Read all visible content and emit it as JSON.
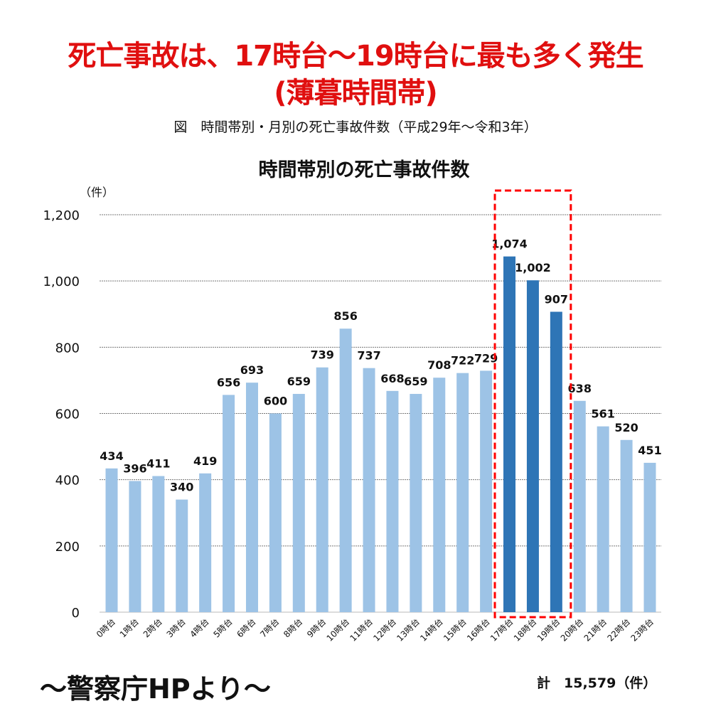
{
  "headline": {
    "line1": "死亡事故は、17時台〜19時台に最も多く発生",
    "line2": "(薄暮時間帯)",
    "color": "#e00f0f"
  },
  "figure_caption": "図　時間帯別・月別の死亡事故件数（平成29年〜令和3年）",
  "chart_data": {
    "type": "bar",
    "title": "時間帯別の死亡事故件数",
    "xlabel": "",
    "ylabel": "（件）",
    "ylim": [
      0,
      1200
    ],
    "yticks": [
      0,
      200,
      400,
      600,
      800,
      1000,
      1200
    ],
    "ytick_labels": [
      "0",
      "200",
      "400",
      "600",
      "800",
      "1,000",
      "1,200"
    ],
    "grid": "horizontal-dotted",
    "categories": [
      "0時台",
      "1時台",
      "2時台",
      "3時台",
      "4時台",
      "5時台",
      "6時台",
      "7時台",
      "8時台",
      "9時台",
      "10時台",
      "11時台",
      "12時台",
      "13時台",
      "14時台",
      "15時台",
      "16時台",
      "17時台",
      "18時台",
      "19時台",
      "20時台",
      "21時台",
      "22時台",
      "23時台"
    ],
    "values": [
      434,
      396,
      411,
      340,
      419,
      656,
      693,
      600,
      659,
      739,
      856,
      737,
      668,
      659,
      708,
      722,
      729,
      1074,
      1002,
      907,
      638,
      561,
      520,
      451
    ],
    "value_labels": [
      "434",
      "396",
      "411",
      "340",
      "419",
      "656",
      "693",
      "600",
      "659",
      "739",
      "856",
      "737",
      "668",
      "659",
      "708",
      "722",
      "729",
      "1,074",
      "1,002",
      "907",
      "638",
      "561",
      "520",
      "451"
    ],
    "highlighted": [
      "17時台",
      "18時台",
      "19時台"
    ],
    "colors": {
      "normal": "#9dc3e6",
      "highlight": "#2e75b6",
      "highlight_box": "#ff0000"
    },
    "total_label": "計　15,579（件）"
  },
  "footer": {
    "source": "〜警察庁HPより〜"
  }
}
